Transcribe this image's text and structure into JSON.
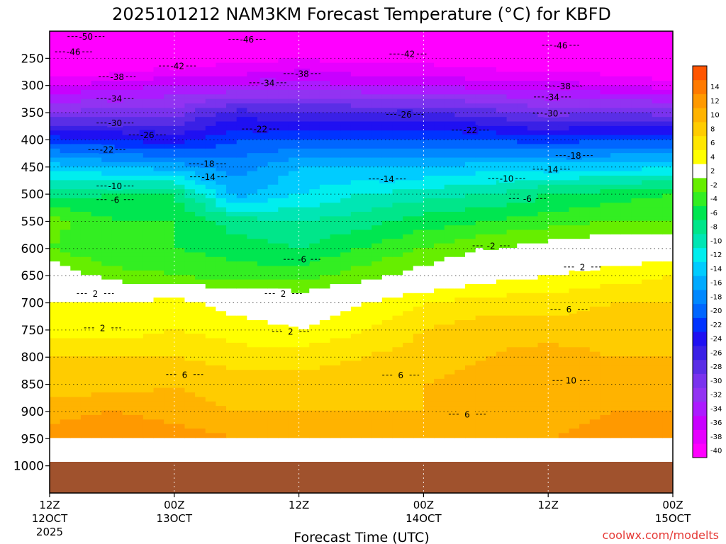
{
  "chart_data": {
    "type": "heatmap",
    "title": "2025101212 NAM3KM Forecast Temperature (°C) for KBFD",
    "xlabel": "Forecast Time (UTC)",
    "ylabel": "",
    "credit": "coolwx.com/modelts",
    "x_range_hours": [
      0,
      60
    ],
    "x_ticks": [
      {
        "hour": 0,
        "line1": "12Z",
        "line2": "12OCT",
        "line3": "2025"
      },
      {
        "hour": 12,
        "line1": "00Z",
        "line2": "13OCT",
        "line3": ""
      },
      {
        "hour": 24,
        "line1": "12Z",
        "line2": "",
        "line3": ""
      },
      {
        "hour": 36,
        "line1": "00Z",
        "line2": "14OCT",
        "line3": ""
      },
      {
        "hour": 48,
        "line1": "12Z",
        "line2": "",
        "line3": ""
      },
      {
        "hour": 60,
        "line1": "00Z",
        "line2": "15OCT",
        "line3": ""
      }
    ],
    "y_range_hpa": [
      200,
      1050
    ],
    "y_ticks": [
      250,
      300,
      350,
      400,
      450,
      500,
      550,
      600,
      650,
      700,
      750,
      800,
      850,
      900,
      950,
      1000
    ],
    "surface_pressure_hpa": 948,
    "colorbar": {
      "bins": [
        {
          "label": "-40",
          "color": "#ff00ff"
        },
        {
          "label": "-38",
          "color": "#e600ff"
        },
        {
          "label": "-36",
          "color": "#c800ff"
        },
        {
          "label": "-34",
          "color": "#ac1aff"
        },
        {
          "label": "-32",
          "color": "#9233f2"
        },
        {
          "label": "-30",
          "color": "#7a33ee"
        },
        {
          "label": "-28",
          "color": "#5a2ee6"
        },
        {
          "label": "-26",
          "color": "#3a20e6"
        },
        {
          "label": "-24",
          "color": "#1f10f2"
        },
        {
          "label": "-22",
          "color": "#0033ff"
        },
        {
          "label": "-20",
          "color": "#0066ff"
        },
        {
          "label": "-18",
          "color": "#0088ff"
        },
        {
          "label": "-16",
          "color": "#00aaff"
        },
        {
          "label": "-14",
          "color": "#00ccff"
        },
        {
          "label": "-12",
          "color": "#00eeee"
        },
        {
          "label": "-10",
          "color": "#00e6b4"
        },
        {
          "label": "-8",
          "color": "#00e68a"
        },
        {
          "label": "-6",
          "color": "#00e650"
        },
        {
          "label": "-4",
          "color": "#33ee22"
        },
        {
          "label": "-2",
          "color": "#66ee00"
        },
        {
          "label": "2",
          "color": "#ffffff"
        },
        {
          "label": "4",
          "color": "#ffff00"
        },
        {
          "label": "6",
          "color": "#ffe600"
        },
        {
          "label": "8",
          "color": "#ffcc00"
        },
        {
          "label": "10",
          "color": "#ffb300"
        },
        {
          "label": "12",
          "color": "#ff9900"
        },
        {
          "label": "14",
          "color": "#ff7a00"
        },
        {
          "label": "",
          "color": "#ff5500"
        }
      ]
    },
    "temperature_profiles": [
      {
        "hour": 0,
        "levels_hpa": [
          200,
          250,
          300,
          350,
          400,
          450,
          500,
          550,
          600,
          650,
          700,
          750,
          800,
          850,
          900,
          950
        ],
        "temps_c": [
          -51,
          -45,
          -38,
          -32,
          -23,
          -15,
          -9,
          -3,
          -4,
          0,
          2,
          3,
          6,
          7,
          9,
          11
        ]
      },
      {
        "hour": 6,
        "levels_hpa": [
          200,
          250,
          300,
          350,
          400,
          450,
          500,
          550,
          600,
          650,
          700,
          750,
          800,
          850,
          900,
          950
        ],
        "temps_c": [
          -50,
          -44,
          -37,
          -31,
          -24,
          -16,
          -8,
          -6,
          -6,
          -3,
          2,
          3,
          6,
          7,
          10,
          12
        ]
      },
      {
        "hour": 12,
        "levels_hpa": [
          200,
          250,
          300,
          350,
          400,
          450,
          500,
          550,
          600,
          650,
          700,
          750,
          800,
          850,
          900,
          950
        ],
        "temps_c": [
          -48,
          -42,
          -36,
          -31,
          -25,
          -17,
          -8,
          -6,
          -6,
          -4,
          3,
          4,
          6,
          8,
          9,
          11
        ]
      },
      {
        "hour": 18,
        "levels_hpa": [
          200,
          250,
          300,
          350,
          400,
          450,
          500,
          550,
          600,
          650,
          700,
          750,
          800,
          850,
          900,
          950
        ],
        "temps_c": [
          -47,
          -41,
          -36,
          -27,
          -22,
          -19,
          -17,
          -9,
          -7,
          -5,
          1,
          3,
          5,
          7,
          8,
          10
        ]
      },
      {
        "hour": 24,
        "levels_hpa": [
          200,
          250,
          300,
          350,
          400,
          450,
          500,
          550,
          600,
          650,
          700,
          750,
          800,
          850,
          900,
          950
        ],
        "temps_c": [
          -46,
          -40,
          -35,
          -28,
          -22,
          -16,
          -14,
          -10,
          -8,
          -5,
          0,
          2,
          5,
          7,
          8,
          10
        ]
      },
      {
        "hour": 30,
        "levels_hpa": [
          200,
          250,
          300,
          350,
          400,
          450,
          500,
          550,
          600,
          650,
          700,
          750,
          800,
          850,
          900,
          950
        ],
        "temps_c": [
          -45,
          -41,
          -36,
          -28,
          -22,
          -16,
          -12,
          -9,
          -6,
          -3,
          2,
          4,
          6,
          7,
          8,
          10
        ]
      },
      {
        "hour": 36,
        "levels_hpa": [
          200,
          250,
          300,
          350,
          400,
          450,
          500,
          550,
          600,
          650,
          700,
          750,
          800,
          850,
          900,
          950
        ],
        "temps_c": [
          -45,
          -41,
          -36,
          -28,
          -22,
          -16,
          -11,
          -7,
          -4,
          -1,
          4,
          6,
          7,
          8,
          8,
          9
        ]
      },
      {
        "hour": 42,
        "levels_hpa": [
          200,
          250,
          300,
          350,
          400,
          450,
          500,
          550,
          600,
          650,
          700,
          750,
          800,
          850,
          900,
          950
        ],
        "temps_c": [
          -46,
          -42,
          -37,
          -29,
          -22,
          -15,
          -10,
          -6,
          -2,
          1,
          5,
          7,
          8,
          9,
          8,
          9
        ]
      },
      {
        "hour": 48,
        "levels_hpa": [
          200,
          250,
          300,
          350,
          400,
          450,
          500,
          550,
          600,
          650,
          700,
          750,
          800,
          850,
          900,
          950
        ],
        "temps_c": [
          -46,
          -43,
          -37,
          -31,
          -23,
          -15,
          -8,
          -5,
          -1,
          2,
          5,
          7,
          9,
          10,
          8,
          10
        ]
      },
      {
        "hour": 54,
        "levels_hpa": [
          200,
          250,
          300,
          350,
          400,
          450,
          500,
          550,
          600,
          650,
          700,
          750,
          800,
          850,
          900,
          950
        ],
        "temps_c": [
          -47,
          -43,
          -38,
          -30,
          -22,
          -15,
          -7,
          -4,
          0,
          3,
          6,
          7,
          8,
          9,
          10,
          12
        ]
      },
      {
        "hour": 60,
        "levels_hpa": [
          200,
          250,
          300,
          350,
          400,
          450,
          500,
          550,
          600,
          650,
          700,
          750,
          800,
          850,
          900,
          950
        ],
        "temps_c": [
          -48,
          -44,
          -39,
          -31,
          -22,
          -14,
          -6,
          -4,
          0,
          4,
          6,
          7,
          8,
          9,
          10,
          12
        ]
      }
    ],
    "isotherm_labels": [
      {
        "text": "-50",
        "hour": 3.5,
        "hpa": 210
      },
      {
        "text": "-46",
        "hour": 2.3,
        "hpa": 238
      },
      {
        "text": "-46",
        "hour": 19.0,
        "hpa": 215
      },
      {
        "text": "-46",
        "hour": 49.2,
        "hpa": 226
      },
      {
        "text": "-42",
        "hour": 12.3,
        "hpa": 264
      },
      {
        "text": "-42",
        "hour": 34.5,
        "hpa": 242
      },
      {
        "text": "-38",
        "hour": 6.5,
        "hpa": 284
      },
      {
        "text": "-38",
        "hour": 24.3,
        "hpa": 278
      },
      {
        "text": "-38",
        "hour": 49.5,
        "hpa": 301
      },
      {
        "text": "-34",
        "hour": 21.0,
        "hpa": 295
      },
      {
        "text": "-34",
        "hour": 6.3,
        "hpa": 324
      },
      {
        "text": "-34",
        "hour": 48.4,
        "hpa": 321
      },
      {
        "text": "-30",
        "hour": 6.3,
        "hpa": 369
      },
      {
        "text": "-30",
        "hour": 48.3,
        "hpa": 351
      },
      {
        "text": "-26",
        "hour": 9.4,
        "hpa": 391
      },
      {
        "text": "-26",
        "hour": 34.2,
        "hpa": 353
      },
      {
        "text": "-22",
        "hour": 5.5,
        "hpa": 418
      },
      {
        "text": "-22",
        "hour": 20.3,
        "hpa": 380
      },
      {
        "text": "-22",
        "hour": 40.5,
        "hpa": 382
      },
      {
        "text": "-18",
        "hour": 15.2,
        "hpa": 444
      },
      {
        "text": "-18",
        "hour": 50.5,
        "hpa": 429
      },
      {
        "text": "-14",
        "hour": 15.3,
        "hpa": 468
      },
      {
        "text": "-14",
        "hour": 32.5,
        "hpa": 472
      },
      {
        "text": "-14",
        "hour": 48.3,
        "hpa": 454
      },
      {
        "text": "-10",
        "hour": 6.3,
        "hpa": 485
      },
      {
        "text": "-10",
        "hour": 44.0,
        "hpa": 471
      },
      {
        "text": "-6",
        "hour": 6.3,
        "hpa": 510
      },
      {
        "text": "-6",
        "hour": 46.0,
        "hpa": 508
      },
      {
        "text": "-6",
        "hour": 24.3,
        "hpa": 620
      },
      {
        "text": "-2",
        "hour": 42.5,
        "hpa": 595
      },
      {
        "text": "2",
        "hour": 4.4,
        "hpa": 683
      },
      {
        "text": "2",
        "hour": 22.5,
        "hpa": 683
      },
      {
        "text": "2",
        "hour": 5.1,
        "hpa": 746
      },
      {
        "text": "2",
        "hour": 23.2,
        "hpa": 753
      },
      {
        "text": "2",
        "hour": 51.3,
        "hpa": 634
      },
      {
        "text": "6",
        "hour": 13.0,
        "hpa": 832
      },
      {
        "text": "6",
        "hour": 33.8,
        "hpa": 833
      },
      {
        "text": "6",
        "hour": 50.0,
        "hpa": 712
      },
      {
        "text": "6",
        "hour": 40.2,
        "hpa": 905
      },
      {
        "text": "10",
        "hour": 50.2,
        "hpa": 843
      }
    ]
  }
}
